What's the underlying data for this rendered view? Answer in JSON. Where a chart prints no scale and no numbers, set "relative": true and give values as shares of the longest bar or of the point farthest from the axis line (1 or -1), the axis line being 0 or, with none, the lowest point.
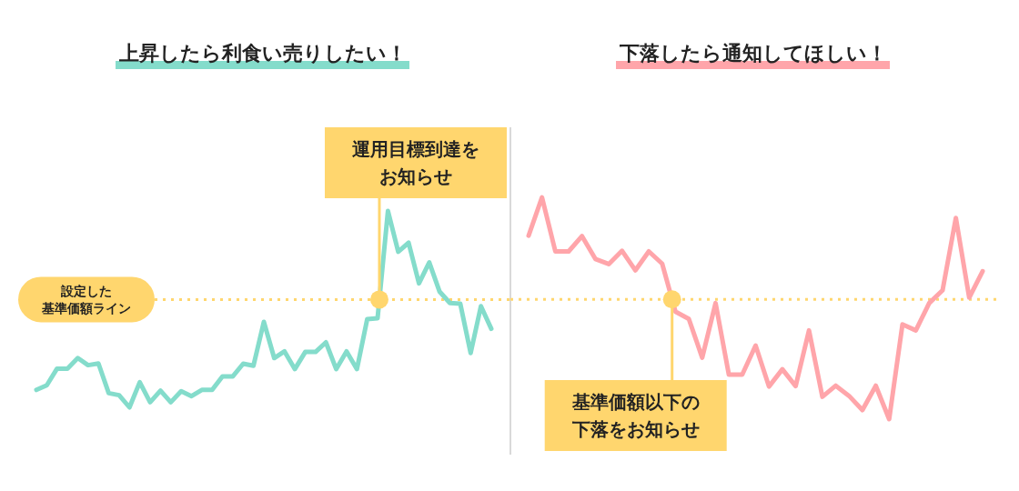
{
  "chart_data": [
    {
      "type": "line",
      "title": "上昇したら利食い売りしたい！",
      "relative": true,
      "categories": [
        null,
        null,
        null,
        null,
        null,
        null,
        null,
        null,
        null,
        null,
        null,
        null,
        null,
        null,
        null,
        null,
        null,
        null,
        null,
        null,
        null,
        null,
        null,
        null,
        null,
        null,
        null,
        null,
        null,
        null,
        null,
        null,
        null,
        null,
        null,
        null,
        null,
        null,
        null,
        null,
        null,
        null,
        null,
        null,
        null
      ],
      "series": [
        {
          "color": "#84dccb",
          "values": [
            0.089,
            0.112,
            0.197,
            0.197,
            0.251,
            0.215,
            0.223,
            0.072,
            0.062,
            0,
            0.128,
            0.026,
            0.085,
            0.026,
            0.082,
            0.057,
            0.089,
            0.089,
            0.158,
            0.158,
            0.222,
            0.212,
            0.435,
            0.251,
            0.285,
            0.195,
            0.282,
            0.282,
            0.331,
            0.195,
            0.285,
            0.195,
            0.449,
            0.454,
            1,
            0.792,
            0.838,
            0.631,
            0.738,
            0.589,
            0.531,
            0.528,
            0.277,
            0.515,
            0.4
          ]
        }
      ],
      "ref_lines": [
        {
          "axis": "y",
          "value": 0.549,
          "label": "設定した基準価額ライン",
          "color": "#ffd66e",
          "line_style": "dotted"
        }
      ],
      "annotations": [
        "運用目標到達をお知らせ"
      ]
    },
    {
      "type": "line",
      "title": "下落したら通知してほしい！",
      "relative": true,
      "categories": [
        null,
        null,
        null,
        null,
        null,
        null,
        null,
        null,
        null,
        null,
        null,
        null,
        null,
        null,
        null,
        null,
        null,
        null,
        null,
        null,
        null,
        null,
        null,
        null,
        null,
        null,
        null,
        null,
        null,
        null,
        null,
        null,
        null,
        null,
        null
      ],
      "series": [
        {
          "color": "#ffa5aa",
          "values": [
            0.827,
            1,
            0.756,
            0.756,
            0.825,
            0.722,
            0.699,
            0.759,
            0.671,
            0.756,
            0.701,
            0.485,
            0.452,
            0.277,
            0.523,
            0.201,
            0.201,
            0.332,
            0.147,
            0.225,
            0.149,
            0.4,
            0.101,
            0.151,
            0.105,
            0.041,
            0.151,
            0,
            0.427,
            0.4,
            0.523,
            0.581,
            0.907,
            0.548,
            0.667
          ]
        }
      ],
      "ref_lines": [
        {
          "axis": "y",
          "value": 0.54,
          "color": "#ffd66e",
          "line_style": "dotted"
        }
      ],
      "annotations": [
        "基準価額以下の下落をお知らせ"
      ]
    }
  ]
}
